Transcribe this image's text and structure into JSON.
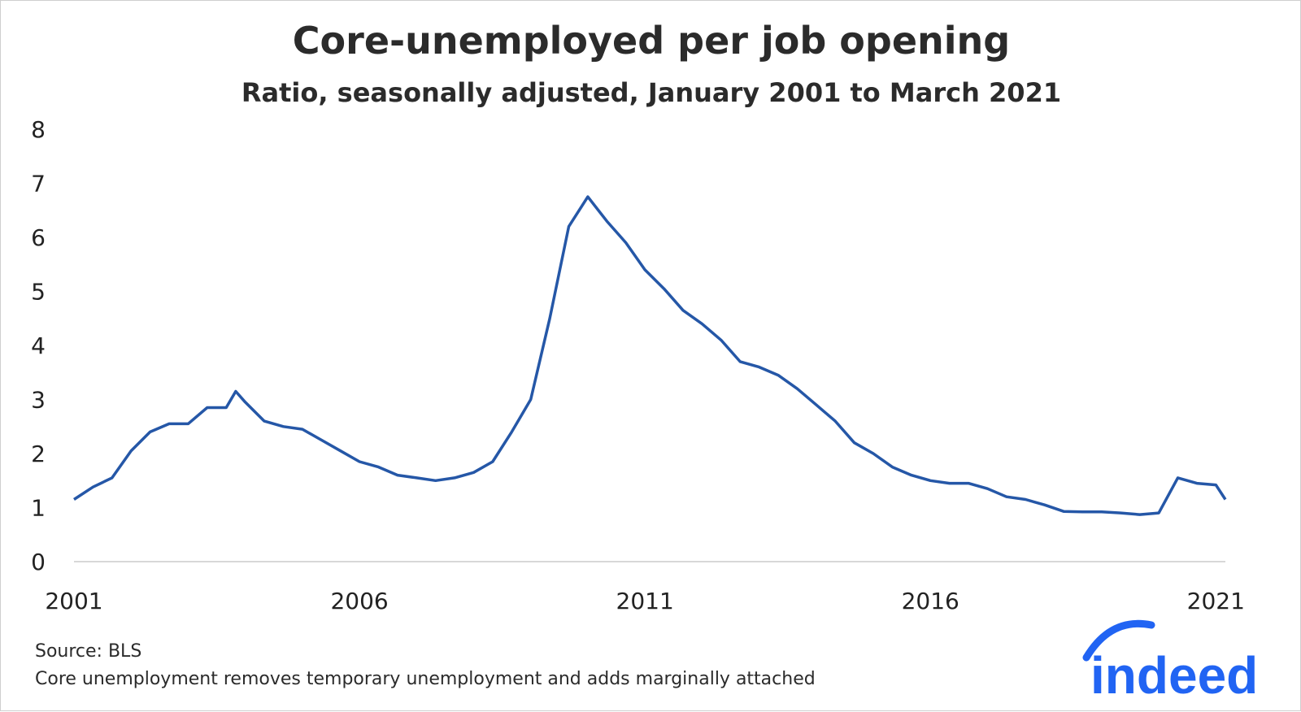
{
  "chart_data": {
    "type": "line",
    "title": "Core-unemployed per job opening",
    "subtitle": "Ratio, seasonally adjusted, January 2001 to March 2021",
    "xlabel": "",
    "ylabel": "",
    "x_tick_labels": [
      "2001",
      "2006",
      "2011",
      "2016",
      "2021"
    ],
    "y_tick_labels": [
      "0",
      "1",
      "2",
      "3",
      "4",
      "5",
      "6",
      "7",
      "8"
    ],
    "ylim": [
      0,
      8
    ],
    "xlim": [
      "2001-01",
      "2021-03"
    ],
    "grid": false,
    "legend": "none",
    "line_color": "#2557a7",
    "series": [
      {
        "points": [
          [
            "2001-01",
            1.15
          ],
          [
            "2001-05",
            1.38
          ],
          [
            "2001-09",
            1.55
          ],
          [
            "2002-01",
            2.05
          ],
          [
            "2002-05",
            2.4
          ],
          [
            "2002-09",
            2.55
          ],
          [
            "2003-01",
            2.55
          ],
          [
            "2003-05",
            2.85
          ],
          [
            "2003-09",
            2.85
          ],
          [
            "2003-11",
            3.15
          ],
          [
            "2004-01",
            2.95
          ],
          [
            "2004-05",
            2.6
          ],
          [
            "2004-09",
            2.5
          ],
          [
            "2005-01",
            2.45
          ],
          [
            "2005-05",
            2.25
          ],
          [
            "2005-09",
            2.05
          ],
          [
            "2006-01",
            1.85
          ],
          [
            "2006-05",
            1.75
          ],
          [
            "2006-09",
            1.6
          ],
          [
            "2007-01",
            1.55
          ],
          [
            "2007-05",
            1.5
          ],
          [
            "2007-09",
            1.55
          ],
          [
            "2008-01",
            1.65
          ],
          [
            "2008-05",
            1.85
          ],
          [
            "2008-09",
            2.4
          ],
          [
            "2009-01",
            3.0
          ],
          [
            "2009-05",
            4.5
          ],
          [
            "2009-09",
            6.2
          ],
          [
            "2010-01",
            6.75
          ],
          [
            "2010-05",
            6.3
          ],
          [
            "2010-09",
            5.9
          ],
          [
            "2011-01",
            5.4
          ],
          [
            "2011-05",
            5.05
          ],
          [
            "2011-09",
            4.65
          ],
          [
            "2012-01",
            4.4
          ],
          [
            "2012-05",
            4.1
          ],
          [
            "2012-09",
            3.7
          ],
          [
            "2013-01",
            3.6
          ],
          [
            "2013-05",
            3.45
          ],
          [
            "2013-09",
            3.2
          ],
          [
            "2014-01",
            2.9
          ],
          [
            "2014-05",
            2.6
          ],
          [
            "2014-09",
            2.2
          ],
          [
            "2015-01",
            2.0
          ],
          [
            "2015-05",
            1.75
          ],
          [
            "2015-09",
            1.6
          ],
          [
            "2016-01",
            1.5
          ],
          [
            "2016-05",
            1.45
          ],
          [
            "2016-09",
            1.45
          ],
          [
            "2017-01",
            1.35
          ],
          [
            "2017-05",
            1.2
          ],
          [
            "2017-09",
            1.15
          ],
          [
            "2018-01",
            1.05
          ],
          [
            "2018-05",
            0.93
          ],
          [
            "2018-09",
            0.92
          ],
          [
            "2019-01",
            0.92
          ],
          [
            "2019-05",
            0.9
          ],
          [
            "2019-09",
            0.87
          ],
          [
            "2020-01",
            0.9
          ],
          [
            "2020-05",
            1.55
          ],
          [
            "2020-09",
            1.45
          ],
          [
            "2021-01",
            1.42
          ],
          [
            "2021-03",
            1.15
          ]
        ]
      }
    ]
  },
  "footer": {
    "source": "Source: BLS",
    "note": "Core unemployment removes temporary unemployment and adds marginally attached"
  },
  "logo": {
    "text": "indeed",
    "color": "#2164f3"
  }
}
